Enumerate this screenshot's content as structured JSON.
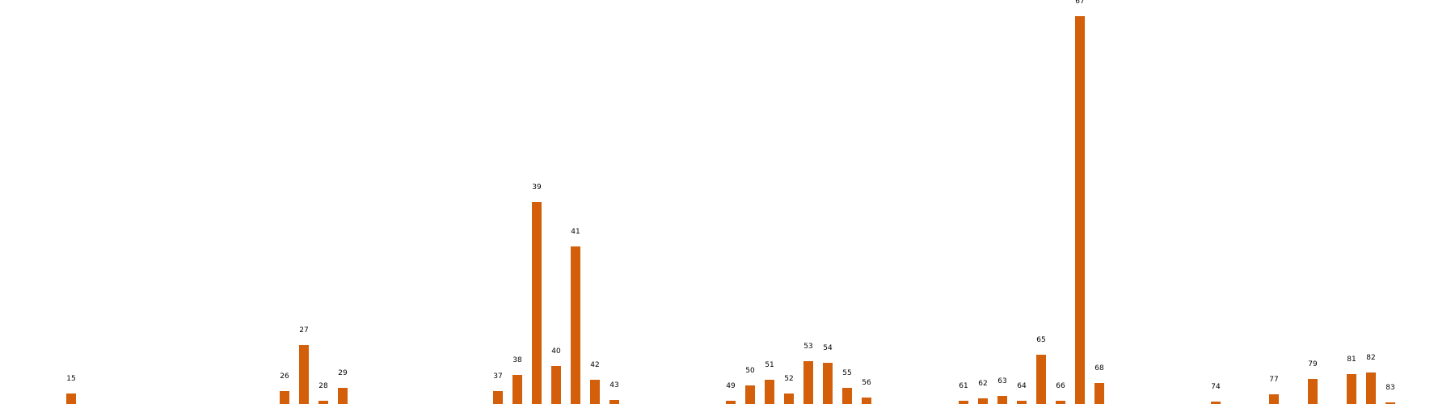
{
  "theme": {
    "bar_color": "#d35f0b",
    "label_color": "#000000",
    "background": "#ffffff"
  },
  "chart_data": {
    "type": "bar",
    "title": "",
    "xlabel": "",
    "ylabel": "",
    "grid": false,
    "axes_visible": false,
    "categories": [
      "15",
      "26",
      "27",
      "28",
      "29",
      "37",
      "38",
      "39",
      "40",
      "41",
      "42",
      "43",
      "49",
      "50",
      "51",
      "52",
      "53",
      "54",
      "55",
      "56",
      "61",
      "62",
      "63",
      "64",
      "65",
      "66",
      "67",
      "68",
      "74",
      "77",
      "79",
      "81",
      "82",
      "83"
    ],
    "x": [
      15,
      26,
      27,
      28,
      29,
      37,
      38,
      39,
      40,
      41,
      42,
      43,
      49,
      50,
      51,
      52,
      53,
      54,
      55,
      56,
      61,
      62,
      63,
      64,
      65,
      66,
      67,
      68,
      74,
      77,
      79,
      81,
      82,
      83
    ],
    "values": [
      13,
      16,
      73,
      4,
      20,
      16,
      36,
      250,
      47,
      195,
      30,
      5,
      4,
      23,
      30,
      13,
      53,
      51,
      20,
      8,
      4,
      7,
      10,
      4,
      61,
      4,
      480,
      26,
      3,
      12,
      31,
      37,
      39,
      2
    ],
    "ylim": [
      0,
      500
    ]
  }
}
